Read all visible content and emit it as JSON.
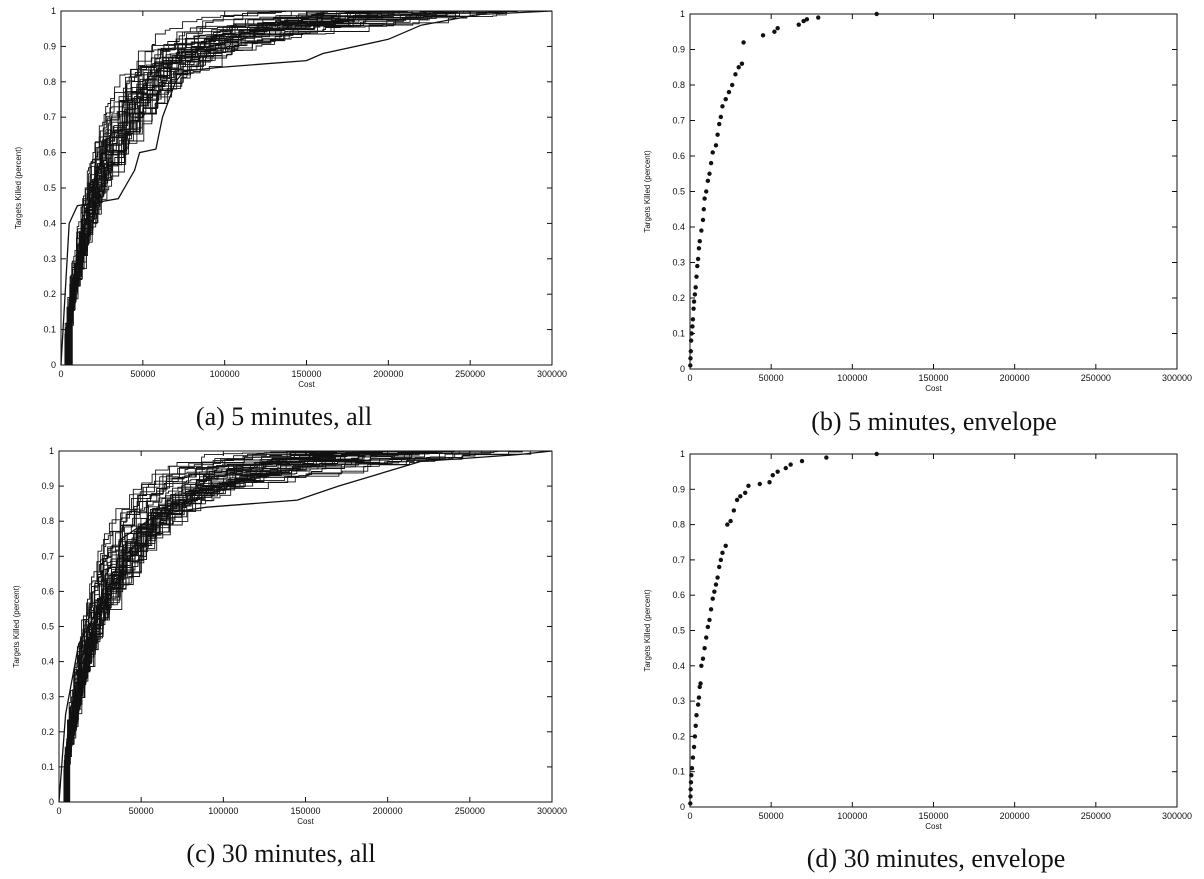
{
  "figure": {
    "captions": [
      "(a) 5 minutes, all",
      "(b) 5 minutes, envelope",
      "(c) 30 minutes, all",
      "(d) 30 minutes, envelope"
    ]
  },
  "chart_data": [
    {
      "type": "line",
      "caption": "(a) 5 minutes, all",
      "xlabel": "Cost",
      "ylabel": "Targets Killed (percent)",
      "xlim": [
        0,
        300000
      ],
      "ylim": [
        0,
        1
      ],
      "xticks": [
        "0",
        "50000",
        "100000",
        "150000",
        "200000",
        "250000",
        "300000"
      ],
      "yticks": [
        "0",
        "0.1",
        "0.2",
        "0.3",
        "0.4",
        "0.5",
        "0.6",
        "0.7",
        "0.8",
        "0.9",
        "1"
      ],
      "grid": false,
      "series_count": 40,
      "seed": 11,
      "slow_series": [
        [
          0,
          0
        ],
        [
          5000,
          0.4
        ],
        [
          10000,
          0.45
        ],
        [
          35000,
          0.47
        ],
        [
          45000,
          0.55
        ],
        [
          48000,
          0.6
        ],
        [
          58000,
          0.61
        ],
        [
          62000,
          0.7
        ],
        [
          70000,
          0.8
        ],
        [
          75000,
          0.83
        ],
        [
          95000,
          0.84
        ],
        [
          150000,
          0.86
        ],
        [
          160000,
          0.88
        ],
        [
          200000,
          0.92
        ],
        [
          220000,
          0.96
        ],
        [
          255000,
          0.99
        ],
        [
          300000,
          1.0
        ]
      ]
    },
    {
      "type": "scatter",
      "caption": "(b) 5 minutes, envelope",
      "xlabel": "Cost",
      "ylabel": "Targets Killed (percent)",
      "xlim": [
        0,
        300000
      ],
      "ylim": [
        0,
        1
      ],
      "xticks": [
        "0",
        "50000",
        "100000",
        "150000",
        "200000",
        "250000",
        "300000"
      ],
      "yticks": [
        "0",
        "0.1",
        "0.2",
        "0.3",
        "0.4",
        "0.5",
        "0.6",
        "0.7",
        "0.8",
        "0.9",
        "1"
      ],
      "grid": false,
      "points": [
        [
          200,
          0.01
        ],
        [
          300,
          0.03
        ],
        [
          500,
          0.05
        ],
        [
          700,
          0.08
        ],
        [
          1000,
          0.1
        ],
        [
          1500,
          0.12
        ],
        [
          1800,
          0.14
        ],
        [
          2200,
          0.17
        ],
        [
          2500,
          0.19
        ],
        [
          3000,
          0.21
        ],
        [
          3500,
          0.23
        ],
        [
          4000,
          0.26
        ],
        [
          4500,
          0.29
        ],
        [
          5000,
          0.31
        ],
        [
          5500,
          0.34
        ],
        [
          6000,
          0.36
        ],
        [
          7000,
          0.39
        ],
        [
          8000,
          0.42
        ],
        [
          8500,
          0.45
        ],
        [
          9000,
          0.48
        ],
        [
          10000,
          0.5
        ],
        [
          11000,
          0.53
        ],
        [
          12000,
          0.55
        ],
        [
          13000,
          0.58
        ],
        [
          14000,
          0.61
        ],
        [
          16000,
          0.63
        ],
        [
          17000,
          0.66
        ],
        [
          18000,
          0.69
        ],
        [
          19000,
          0.71
        ],
        [
          20000,
          0.74
        ],
        [
          22000,
          0.76
        ],
        [
          24000,
          0.78
        ],
        [
          26000,
          0.8
        ],
        [
          28000,
          0.83
        ],
        [
          30000,
          0.85
        ],
        [
          32000,
          0.86
        ],
        [
          33000,
          0.92
        ],
        [
          45000,
          0.94
        ],
        [
          52000,
          0.95
        ],
        [
          54000,
          0.96
        ],
        [
          67000,
          0.97
        ],
        [
          70000,
          0.98
        ],
        [
          72000,
          0.985
        ],
        [
          79000,
          0.99
        ],
        [
          115000,
          1.0
        ]
      ]
    },
    {
      "type": "line",
      "caption": "(c) 30 minutes, all",
      "xlabel": "Cost",
      "ylabel": "Targets Killed (percent)",
      "xlim": [
        0,
        300000
      ],
      "ylim": [
        0,
        1
      ],
      "xticks": [
        "0",
        "50000",
        "100000",
        "150000",
        "200000",
        "250000",
        "300000"
      ],
      "yticks": [
        "0",
        "0.1",
        "0.2",
        "0.3",
        "0.4",
        "0.5",
        "0.6",
        "0.7",
        "0.8",
        "0.9",
        "1"
      ],
      "grid": false,
      "series_count": 45,
      "seed": 29,
      "slow_series": [
        [
          0,
          0
        ],
        [
          4000,
          0.25
        ],
        [
          12000,
          0.45
        ],
        [
          25000,
          0.56
        ],
        [
          32000,
          0.6
        ],
        [
          38000,
          0.75
        ],
        [
          60000,
          0.82
        ],
        [
          90000,
          0.84
        ],
        [
          145000,
          0.86
        ],
        [
          170000,
          0.9
        ],
        [
          220000,
          0.97
        ],
        [
          280000,
          0.99
        ],
        [
          300000,
          1.0
        ]
      ]
    },
    {
      "type": "scatter",
      "caption": "(d) 30 minutes, envelope",
      "xlabel": "Cost",
      "ylabel": "Targets Killed (percent)",
      "xlim": [
        0,
        300000
      ],
      "ylim": [
        0,
        1
      ],
      "xticks": [
        "0",
        "50000",
        "100000",
        "150000",
        "200000",
        "250000",
        "300000"
      ],
      "yticks": [
        "0",
        "0.1",
        "0.2",
        "0.3",
        "0.4",
        "0.5",
        "0.6",
        "0.7",
        "0.8",
        "0.9",
        "1"
      ],
      "grid": false,
      "points": [
        [
          200,
          0.01
        ],
        [
          300,
          0.03
        ],
        [
          400,
          0.05
        ],
        [
          600,
          0.07
        ],
        [
          800,
          0.09
        ],
        [
          1200,
          0.11
        ],
        [
          1800,
          0.14
        ],
        [
          2500,
          0.17
        ],
        [
          3000,
          0.2
        ],
        [
          3500,
          0.23
        ],
        [
          4000,
          0.26
        ],
        [
          5000,
          0.29
        ],
        [
          5500,
          0.31
        ],
        [
          6000,
          0.34
        ],
        [
          6500,
          0.35
        ],
        [
          7000,
          0.4
        ],
        [
          8000,
          0.42
        ],
        [
          9000,
          0.45
        ],
        [
          10000,
          0.48
        ],
        [
          11000,
          0.51
        ],
        [
          12000,
          0.53
        ],
        [
          13000,
          0.56
        ],
        [
          14000,
          0.59
        ],
        [
          15000,
          0.61
        ],
        [
          16000,
          0.63
        ],
        [
          17000,
          0.65
        ],
        [
          18000,
          0.68
        ],
        [
          19000,
          0.7
        ],
        [
          20000,
          0.72
        ],
        [
          22000,
          0.74
        ],
        [
          23000,
          0.8
        ],
        [
          25000,
          0.81
        ],
        [
          27000,
          0.84
        ],
        [
          29000,
          0.87
        ],
        [
          31000,
          0.88
        ],
        [
          34000,
          0.89
        ],
        [
          36000,
          0.91
        ],
        [
          43000,
          0.915
        ],
        [
          49000,
          0.92
        ],
        [
          51000,
          0.94
        ],
        [
          54000,
          0.95
        ],
        [
          59000,
          0.96
        ],
        [
          62000,
          0.97
        ],
        [
          69000,
          0.98
        ],
        [
          84000,
          0.99
        ],
        [
          115000,
          1.0
        ]
      ]
    }
  ]
}
